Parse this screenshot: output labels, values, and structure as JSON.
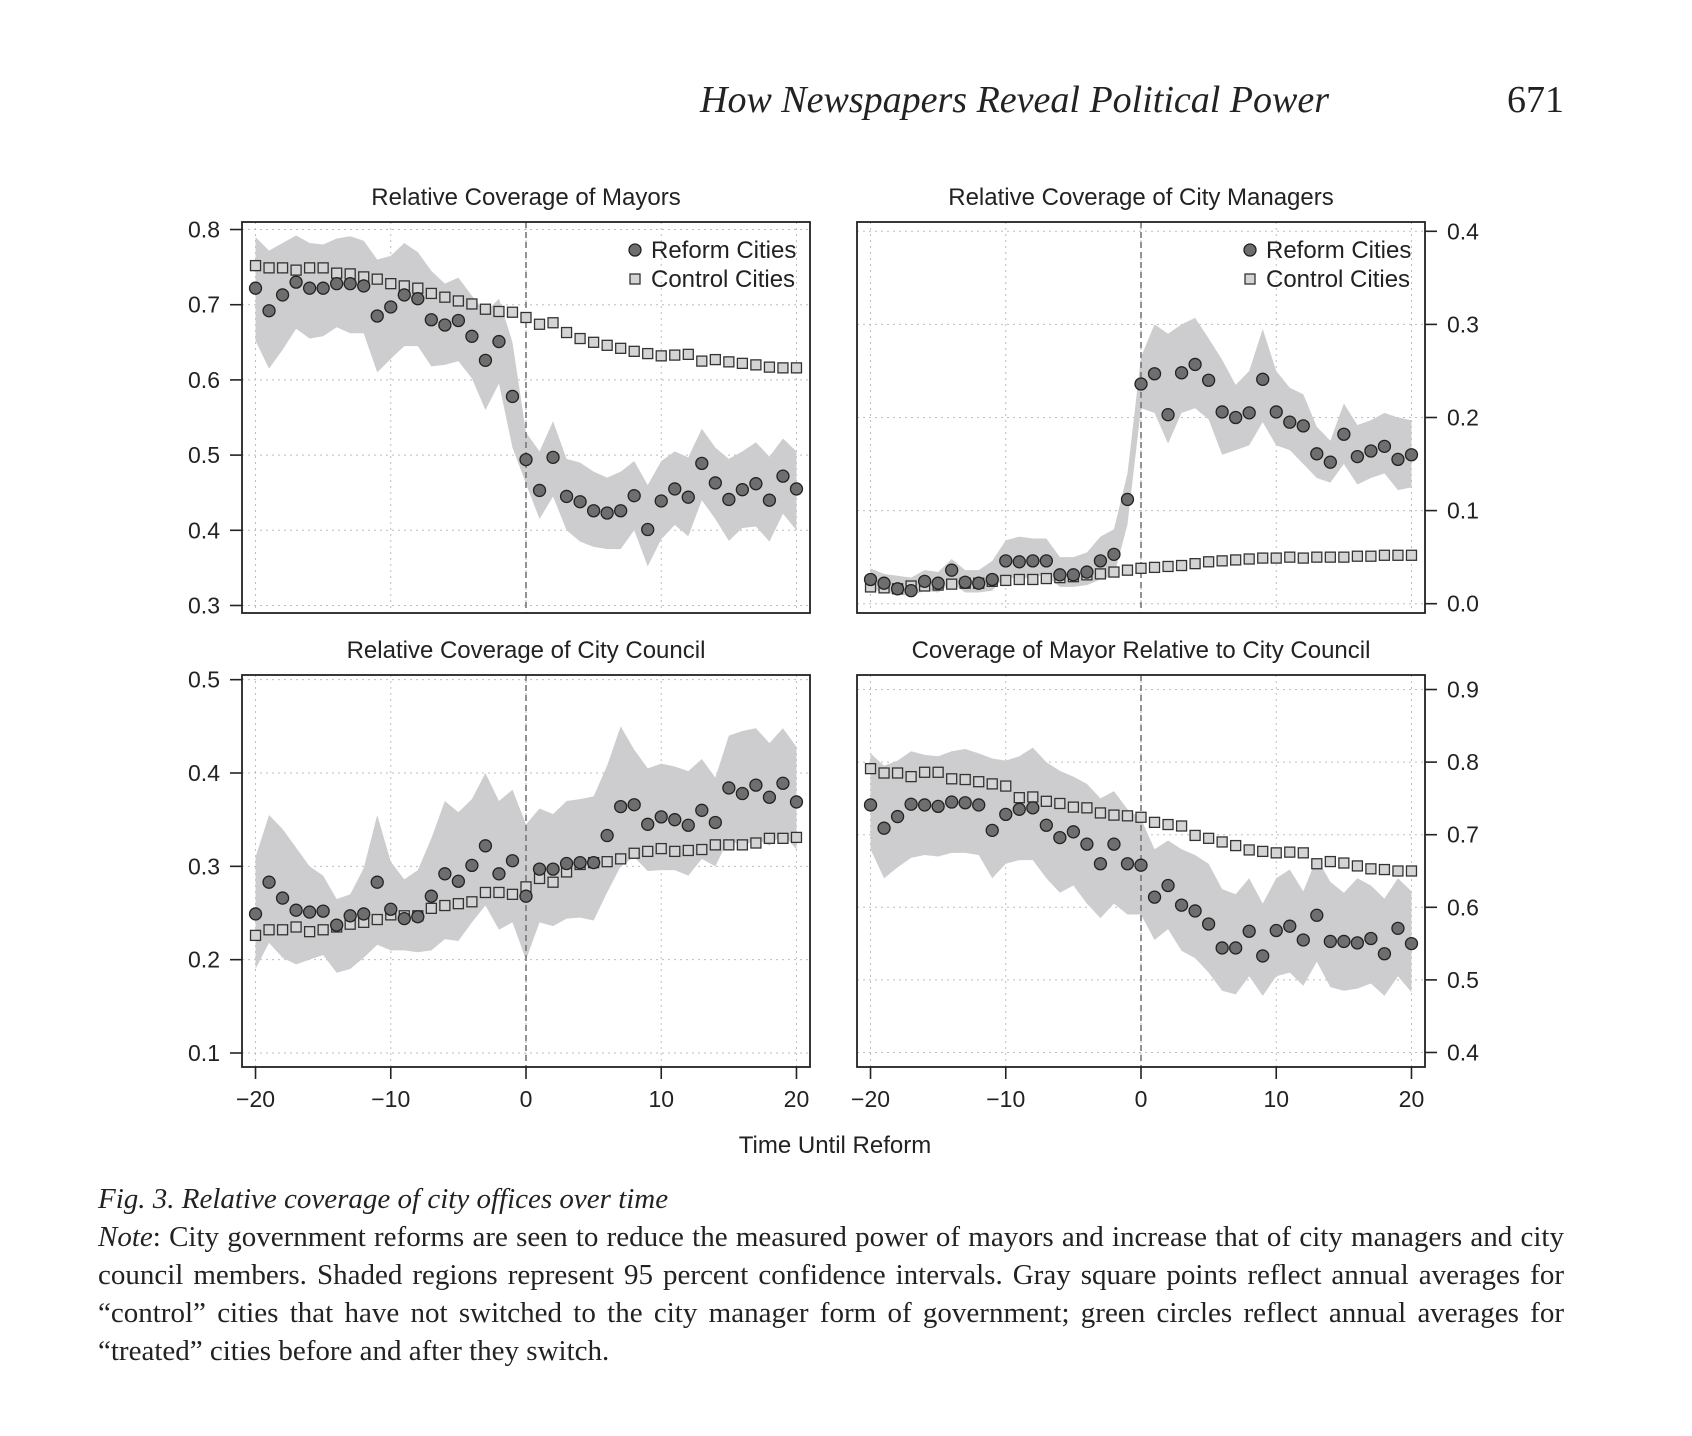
{
  "header": {
    "title": "How Newspapers Reveal Political Power",
    "page_number": "671"
  },
  "figure": {
    "shared_xlabel": "Time Until Reform",
    "caption_title": "Fig. 3.  Relative coverage of city offices over time",
    "caption_note_label": "Note",
    "caption_note_text": ": City government reforms are seen to reduce the measured power of mayors and increase that of city managers and city council members. Shaded regions represent 95 percent confidence intervals. Gray square points reflect annual averages for “control” cities that have not switched to the city manager form of government; green circles reflect annual averages for “treated” cities before and after they switch."
  },
  "colors": {
    "reform_marker": "#6e6e6e",
    "control_marker": "#d4d4d4",
    "ci_band": "#cdcdcf",
    "axis": "#222222",
    "grid": "#bdbdbd"
  },
  "chart_data": [
    {
      "type": "scatter",
      "title": "Relative Coverage of Mayors",
      "xlim": [
        -21,
        21
      ],
      "ylim": [
        0.29,
        0.81
      ],
      "xticks": [
        -20,
        -10,
        0,
        10,
        20
      ],
      "yticks": [
        0.3,
        0.4,
        0.5,
        0.6,
        0.7,
        0.8
      ],
      "xtick_labels": [],
      "ytick_labels": [
        "0.3",
        "0.4",
        "0.5",
        "0.6",
        "0.7",
        "0.8"
      ],
      "y_axis_side": "left",
      "legend": {
        "position": "top-right",
        "entries": [
          "Reform Cities",
          "Control Cities"
        ]
      },
      "vline_x": 0,
      "grid": true,
      "x": [
        -20,
        -19,
        -18,
        -17,
        -16,
        -15,
        -14,
        -13,
        -12,
        -11,
        -10,
        -9,
        -8,
        -7,
        -6,
        -5,
        -4,
        -3,
        -2,
        -1,
        0,
        1,
        2,
        3,
        4,
        5,
        6,
        7,
        8,
        9,
        10,
        11,
        12,
        13,
        14,
        15,
        16,
        17,
        18,
        19,
        20
      ],
      "series": [
        {
          "name": "Reform Cities",
          "marker": "circle",
          "values": [
            0.722,
            0.692,
            0.713,
            0.73,
            0.722,
            0.722,
            0.728,
            0.728,
            0.725,
            0.685,
            0.697,
            0.713,
            0.708,
            0.68,
            0.673,
            0.679,
            0.658,
            0.626,
            0.651,
            0.578,
            0.494,
            0.453,
            0.497,
            0.445,
            0.438,
            0.426,
            0.423,
            0.426,
            0.446,
            0.401,
            0.439,
            0.455,
            0.444,
            0.489,
            0.463,
            0.441,
            0.454,
            0.462,
            0.44,
            0.472,
            0.455
          ]
        },
        {
          "name": "Control Cities",
          "marker": "square",
          "values": [
            0.752,
            0.749,
            0.749,
            0.746,
            0.749,
            0.749,
            0.742,
            0.741,
            0.737,
            0.734,
            0.728,
            0.725,
            0.722,
            0.715,
            0.71,
            0.705,
            0.701,
            0.694,
            0.691,
            0.69,
            0.683,
            0.674,
            0.676,
            0.663,
            0.655,
            0.65,
            0.646,
            0.642,
            0.638,
            0.635,
            0.632,
            0.633,
            0.634,
            0.625,
            0.627,
            0.624,
            0.622,
            0.62,
            0.617,
            0.616,
            0.616
          ]
        }
      ],
      "ci_upper": [
        0.79,
        0.772,
        0.782,
        0.792,
        0.782,
        0.78,
        0.788,
        0.791,
        0.785,
        0.76,
        0.765,
        0.782,
        0.77,
        0.745,
        0.728,
        0.736,
        0.712,
        0.69,
        0.708,
        0.65,
        0.53,
        0.505,
        0.545,
        0.495,
        0.49,
        0.478,
        0.47,
        0.478,
        0.492,
        0.46,
        0.492,
        0.505,
        0.497,
        0.535,
        0.51,
        0.495,
        0.505,
        0.517,
        0.498,
        0.522,
        0.505
      ],
      "ci_lower": [
        0.652,
        0.615,
        0.64,
        0.668,
        0.655,
        0.658,
        0.67,
        0.662,
        0.662,
        0.61,
        0.628,
        0.645,
        0.645,
        0.618,
        0.62,
        0.625,
        0.602,
        0.56,
        0.595,
        0.51,
        0.462,
        0.415,
        0.445,
        0.4,
        0.385,
        0.378,
        0.375,
        0.375,
        0.4,
        0.352,
        0.388,
        0.407,
        0.392,
        0.44,
        0.415,
        0.386,
        0.403,
        0.405,
        0.385,
        0.422,
        0.4
      ]
    },
    {
      "type": "scatter",
      "title": "Relative Coverage of City Managers",
      "xlim": [
        -21,
        21
      ],
      "ylim": [
        -0.01,
        0.41
      ],
      "xticks": [
        -20,
        -10,
        0,
        10,
        20
      ],
      "yticks": [
        0.0,
        0.1,
        0.2,
        0.3,
        0.4
      ],
      "xtick_labels": [],
      "ytick_labels": [
        "0.0",
        "0.1",
        "0.2",
        "0.3",
        "0.4"
      ],
      "y_axis_side": "right",
      "legend": {
        "position": "top-right",
        "entries": [
          "Reform Cities",
          "Control Cities"
        ]
      },
      "vline_x": 0,
      "grid": true,
      "x": [
        -20,
        -19,
        -18,
        -17,
        -16,
        -15,
        -14,
        -13,
        -12,
        -11,
        -10,
        -9,
        -8,
        -7,
        -6,
        -5,
        -4,
        -3,
        -2,
        -1,
        0,
        1,
        2,
        3,
        4,
        5,
        6,
        7,
        8,
        9,
        10,
        11,
        12,
        13,
        14,
        15,
        16,
        17,
        18,
        19,
        20
      ],
      "series": [
        {
          "name": "Reform Cities",
          "marker": "circle",
          "values": [
            0.026,
            0.022,
            0.016,
            0.014,
            0.024,
            0.022,
            0.036,
            0.023,
            0.022,
            0.026,
            0.046,
            0.045,
            0.046,
            0.046,
            0.031,
            0.031,
            0.034,
            0.046,
            0.053,
            0.112,
            0.236,
            0.247,
            0.203,
            0.248,
            0.257,
            0.24,
            0.206,
            0.2,
            0.205,
            0.241,
            0.206,
            0.195,
            0.191,
            0.161,
            0.152,
            0.182,
            0.158,
            0.164,
            0.169,
            0.155,
            0.16
          ]
        },
        {
          "name": "Control Cities",
          "marker": "square",
          "values": [
            0.018,
            0.017,
            0.016,
            0.019,
            0.019,
            0.02,
            0.021,
            0.022,
            0.022,
            0.024,
            0.025,
            0.026,
            0.026,
            0.027,
            0.028,
            0.029,
            0.031,
            0.032,
            0.034,
            0.036,
            0.038,
            0.039,
            0.04,
            0.041,
            0.043,
            0.045,
            0.046,
            0.047,
            0.048,
            0.049,
            0.049,
            0.05,
            0.049,
            0.05,
            0.05,
            0.05,
            0.051,
            0.051,
            0.052,
            0.052,
            0.052
          ]
        }
      ],
      "ci_upper": [
        0.038,
        0.032,
        0.03,
        0.028,
        0.036,
        0.034,
        0.048,
        0.036,
        0.036,
        0.046,
        0.068,
        0.072,
        0.07,
        0.07,
        0.05,
        0.05,
        0.055,
        0.072,
        0.08,
        0.14,
        0.265,
        0.3,
        0.29,
        0.3,
        0.307,
        0.285,
        0.262,
        0.235,
        0.25,
        0.295,
        0.25,
        0.232,
        0.225,
        0.19,
        0.175,
        0.215,
        0.192,
        0.197,
        0.205,
        0.2,
        0.197
      ],
      "ci_lower": [
        0.016,
        0.012,
        0.01,
        0.008,
        0.014,
        0.012,
        0.022,
        0.012,
        0.012,
        0.014,
        0.03,
        0.025,
        0.03,
        0.03,
        0.018,
        0.018,
        0.02,
        0.026,
        0.03,
        0.085,
        0.21,
        0.205,
        0.172,
        0.205,
        0.21,
        0.198,
        0.16,
        0.165,
        0.17,
        0.195,
        0.17,
        0.165,
        0.15,
        0.135,
        0.13,
        0.15,
        0.128,
        0.135,
        0.14,
        0.122,
        0.125
      ]
    },
    {
      "type": "scatter",
      "title": "Relative Coverage of City Council",
      "xlim": [
        -21,
        21
      ],
      "ylim": [
        0.085,
        0.505
      ],
      "xticks": [
        -20,
        -10,
        0,
        10,
        20
      ],
      "yticks": [
        0.1,
        0.2,
        0.3,
        0.4,
        0.5
      ],
      "xtick_labels": [
        "−20",
        "−10",
        "0",
        "10",
        "20"
      ],
      "ytick_labels": [
        "0.1",
        "0.2",
        "0.3",
        "0.4",
        "0.5"
      ],
      "y_axis_side": "left",
      "vline_x": 0,
      "grid": true,
      "x": [
        -20,
        -19,
        -18,
        -17,
        -16,
        -15,
        -14,
        -13,
        -12,
        -11,
        -10,
        -9,
        -8,
        -7,
        -6,
        -5,
        -4,
        -3,
        -2,
        -1,
        0,
        1,
        2,
        3,
        4,
        5,
        6,
        7,
        8,
        9,
        10,
        11,
        12,
        13,
        14,
        15,
        16,
        17,
        18,
        19,
        20
      ],
      "series": [
        {
          "name": "Reform Cities",
          "marker": "circle",
          "values": [
            0.249,
            0.283,
            0.266,
            0.253,
            0.251,
            0.252,
            0.237,
            0.247,
            0.249,
            0.283,
            0.254,
            0.244,
            0.246,
            0.268,
            0.292,
            0.284,
            0.301,
            0.322,
            0.292,
            0.306,
            0.268,
            0.297,
            0.297,
            0.303,
            0.304,
            0.304,
            0.333,
            0.364,
            0.366,
            0.345,
            0.353,
            0.35,
            0.344,
            0.36,
            0.347,
            0.384,
            0.378,
            0.387,
            0.374,
            0.389,
            0.369
          ]
        },
        {
          "name": "Control Cities",
          "marker": "square",
          "values": [
            0.226,
            0.232,
            0.232,
            0.235,
            0.23,
            0.232,
            0.235,
            0.238,
            0.24,
            0.243,
            0.248,
            0.247,
            0.247,
            0.255,
            0.258,
            0.26,
            0.262,
            0.272,
            0.272,
            0.27,
            0.278,
            0.287,
            0.283,
            0.294,
            0.302,
            0.304,
            0.305,
            0.308,
            0.314,
            0.316,
            0.319,
            0.316,
            0.317,
            0.318,
            0.323,
            0.323,
            0.323,
            0.325,
            0.33,
            0.33,
            0.331
          ]
        }
      ],
      "ci_upper": [
        0.31,
        0.355,
        0.34,
        0.32,
        0.3,
        0.29,
        0.265,
        0.27,
        0.298,
        0.355,
        0.305,
        0.286,
        0.296,
        0.33,
        0.37,
        0.358,
        0.372,
        0.4,
        0.37,
        0.382,
        0.345,
        0.362,
        0.356,
        0.37,
        0.372,
        0.375,
        0.408,
        0.45,
        0.425,
        0.405,
        0.41,
        0.407,
        0.402,
        0.415,
        0.395,
        0.44,
        0.445,
        0.448,
        0.432,
        0.448,
        0.428
      ],
      "ci_lower": [
        0.19,
        0.218,
        0.202,
        0.195,
        0.2,
        0.205,
        0.186,
        0.19,
        0.202,
        0.216,
        0.21,
        0.21,
        0.208,
        0.21,
        0.222,
        0.22,
        0.24,
        0.258,
        0.232,
        0.24,
        0.2,
        0.24,
        0.236,
        0.244,
        0.245,
        0.242,
        0.272,
        0.3,
        0.31,
        0.295,
        0.296,
        0.296,
        0.29,
        0.308,
        0.3,
        0.33,
        0.32,
        0.33,
        0.322,
        0.335,
        0.318
      ]
    },
    {
      "type": "scatter",
      "title": "Coverage of Mayor Relative to City Council",
      "xlim": [
        -21,
        21
      ],
      "ylim": [
        0.38,
        0.92
      ],
      "xticks": [
        -20,
        -10,
        0,
        10,
        20
      ],
      "yticks": [
        0.4,
        0.5,
        0.6,
        0.7,
        0.8,
        0.9
      ],
      "xtick_labels": [
        "−20",
        "−10",
        "0",
        "10",
        "20"
      ],
      "ytick_labels": [
        "0.4",
        "0.5",
        "0.6",
        "0.7",
        "0.8",
        "0.9"
      ],
      "y_axis_side": "right",
      "vline_x": 0,
      "grid": true,
      "x": [
        -20,
        -19,
        -18,
        -17,
        -16,
        -15,
        -14,
        -13,
        -12,
        -11,
        -10,
        -9,
        -8,
        -7,
        -6,
        -5,
        -4,
        -3,
        -2,
        -1,
        0,
        1,
        2,
        3,
        4,
        5,
        6,
        7,
        8,
        9,
        10,
        11,
        12,
        13,
        14,
        15,
        16,
        17,
        18,
        19,
        20
      ],
      "series": [
        {
          "name": "Reform Cities",
          "marker": "circle",
          "values": [
            0.741,
            0.709,
            0.725,
            0.742,
            0.741,
            0.739,
            0.745,
            0.744,
            0.741,
            0.706,
            0.728,
            0.735,
            0.737,
            0.713,
            0.696,
            0.704,
            0.687,
            0.66,
            0.687,
            0.66,
            0.658,
            0.614,
            0.63,
            0.603,
            0.595,
            0.577,
            0.544,
            0.544,
            0.567,
            0.533,
            0.568,
            0.574,
            0.555,
            0.589,
            0.553,
            0.553,
            0.551,
            0.557,
            0.536,
            0.571,
            0.55
          ]
        },
        {
          "name": "Control Cities",
          "marker": "square",
          "values": [
            0.791,
            0.785,
            0.785,
            0.78,
            0.786,
            0.786,
            0.777,
            0.776,
            0.773,
            0.77,
            0.767,
            0.751,
            0.752,
            0.746,
            0.743,
            0.738,
            0.737,
            0.73,
            0.727,
            0.726,
            0.724,
            0.717,
            0.714,
            0.712,
            0.699,
            0.695,
            0.69,
            0.685,
            0.679,
            0.677,
            0.675,
            0.676,
            0.675,
            0.66,
            0.663,
            0.661,
            0.657,
            0.653,
            0.652,
            0.65,
            0.65
          ]
        }
      ],
      "ci_upper": [
        0.812,
        0.795,
        0.802,
        0.815,
        0.81,
        0.808,
        0.815,
        0.818,
        0.812,
        0.805,
        0.802,
        0.808,
        0.82,
        0.8,
        0.788,
        0.78,
        0.77,
        0.75,
        0.76,
        0.735,
        0.722,
        0.68,
        0.692,
        0.68,
        0.672,
        0.66,
        0.625,
        0.618,
        0.64,
        0.605,
        0.64,
        0.652,
        0.622,
        0.668,
        0.635,
        0.62,
        0.64,
        0.63,
        0.612,
        0.64,
        0.622
      ],
      "ci_lower": [
        0.68,
        0.64,
        0.655,
        0.668,
        0.672,
        0.67,
        0.675,
        0.675,
        0.672,
        0.64,
        0.66,
        0.665,
        0.665,
        0.64,
        0.62,
        0.63,
        0.605,
        0.585,
        0.605,
        0.59,
        0.59,
        0.555,
        0.57,
        0.54,
        0.53,
        0.51,
        0.485,
        0.48,
        0.505,
        0.478,
        0.505,
        0.51,
        0.492,
        0.525,
        0.49,
        0.485,
        0.488,
        0.495,
        0.478,
        0.505,
        0.483
      ]
    }
  ]
}
